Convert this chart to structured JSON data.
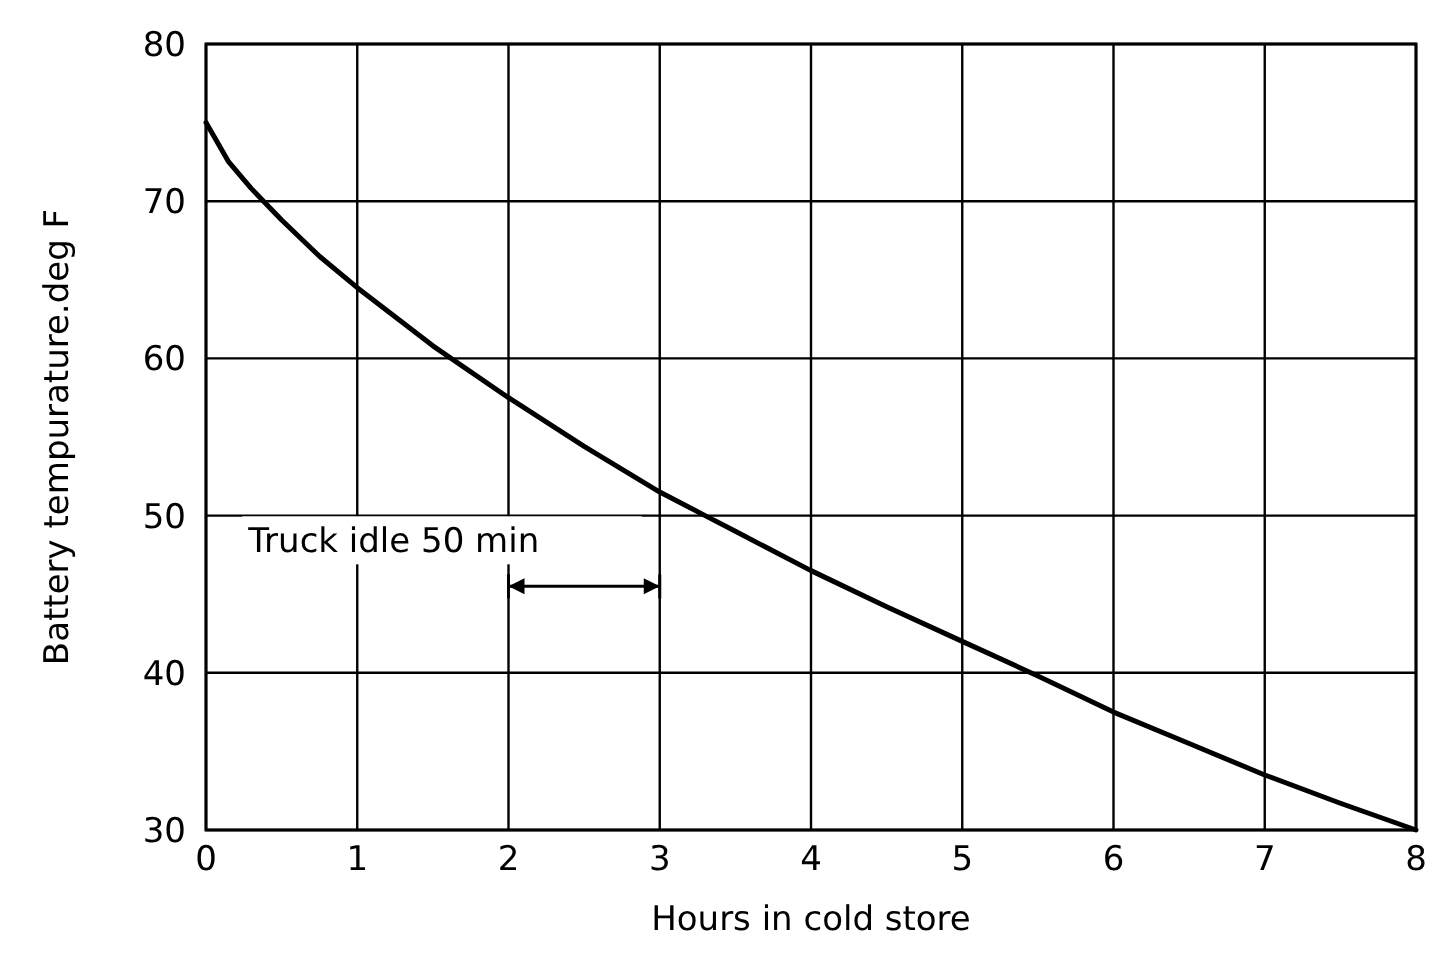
{
  "chart_data": {
    "type": "line",
    "xlabel": "Hours in cold store",
    "ylabel": "Battery tempurature.deg F",
    "x": [
      0,
      0.15,
      0.3,
      0.5,
      0.75,
      1,
      1.5,
      2,
      2.5,
      3,
      3.3,
      3.5,
      4,
      4.5,
      5,
      5.5,
      6,
      6.5,
      7,
      7.5,
      8
    ],
    "series": [
      {
        "color": "#000000",
        "values": [
          75,
          72.5,
          70.8,
          68.8,
          66.5,
          64.5,
          60.8,
          57.5,
          54.4,
          51.5,
          50,
          49,
          46.5,
          44.2,
          42,
          39.8,
          37.5,
          35.5,
          33.5,
          31.7,
          30
        ]
      }
    ],
    "xlim": [
      0,
      8
    ],
    "xticks": [
      0,
      1,
      2,
      3,
      4,
      5,
      6,
      7,
      8
    ],
    "ylim": [
      30,
      80
    ],
    "yticks": [
      30,
      40,
      50,
      60,
      70,
      80
    ],
    "grid": true,
    "marker": "none",
    "line_style": "solid",
    "annotations": [
      "Truck idle 50 min"
    ]
  }
}
